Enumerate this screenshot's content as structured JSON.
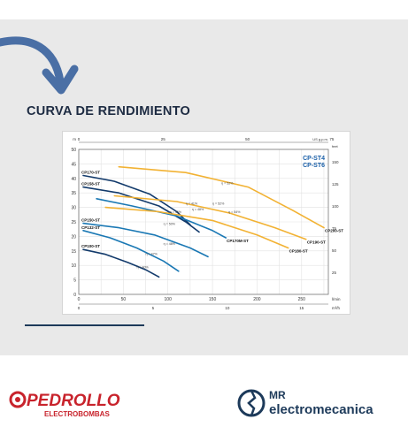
{
  "page": {
    "heading": "CURVA DE RENDIMIENTO",
    "brand_left": {
      "name": "PEDROLLO",
      "sub": "ELECTROBOMBAS",
      "color": "#c8232c"
    },
    "brand_right": {
      "line1": "MR",
      "line2": "electromecanica",
      "color": "#1d3a5a"
    },
    "accent_arrow_color": "#4a6fa5"
  },
  "chart_data": {
    "type": "line",
    "title": "CP-ST4\nCP-ST6",
    "title_lines": [
      "CP-ST4",
      "CP-ST6"
    ],
    "xlabel": "l/min",
    "xlabel_top": "US g.p.m.",
    "xlabel_m3h": "m³/h",
    "ylabel_left": "m",
    "ylabel_right": "feet",
    "xlim": [
      0,
      280
    ],
    "ylim": [
      0,
      50
    ],
    "x_ticks_lmin": [
      "0",
      "50",
      "100",
      "150",
      "200",
      "250"
    ],
    "x_ticks_gpm": [
      "0",
      "25",
      "50",
      "75"
    ],
    "x_ticks_m3h": [
      "0",
      "5",
      "10",
      "15"
    ],
    "y_ticks_m": [
      "0",
      "5",
      "10",
      "15",
      "20",
      "25",
      "30",
      "35",
      "40",
      "45",
      "50"
    ],
    "y_ticks_ft": [
      "25",
      "50",
      "75",
      "100",
      "125",
      "150"
    ],
    "grid": true,
    "series": [
      {
        "name": "CP100-ST",
        "color": "#123a6b",
        "x": [
          5,
          30,
          55,
          75,
          90
        ],
        "y": [
          15.5,
          13.8,
          11,
          8.5,
          6
        ]
      },
      {
        "name": "CP132-ST",
        "color": "#1a78b4",
        "x": [
          5,
          35,
          65,
          95,
          112
        ],
        "y": [
          22,
          19.5,
          16,
          11.5,
          8
        ]
      },
      {
        "name": "CP150-ST",
        "color": "#1a78b4",
        "x": [
          5,
          45,
          85,
          125,
          145
        ],
        "y": [
          24.5,
          23,
          20.5,
          16,
          13
        ]
      },
      {
        "name": "CP158-ST",
        "color": "#123a6b",
        "x": [
          5,
          45,
          90,
          120,
          135
        ],
        "y": [
          37,
          35,
          30.5,
          25,
          21.5
        ]
      },
      {
        "name": "CP170-ST",
        "color": "#123a6b",
        "x": [
          5,
          40,
          80,
          110,
          125
        ],
        "y": [
          41,
          39,
          34.5,
          28.5,
          24
        ]
      },
      {
        "name": "CP170M-ST",
        "color": "#1a78b4",
        "x": [
          20,
          60,
          110,
          150,
          165
        ],
        "y": [
          33,
          30.5,
          27,
          22,
          19.5
        ]
      },
      {
        "name": "CP180-ST",
        "color": "#f2b233",
        "x": [
          30,
          90,
          150,
          200,
          235
        ],
        "y": [
          30,
          28.5,
          25.5,
          20.5,
          16
        ]
      },
      {
        "name": "CP190-ST",
        "color": "#f2b233",
        "x": [
          40,
          110,
          170,
          220,
          255
        ],
        "y": [
          34,
          32,
          28,
          23,
          19
        ]
      },
      {
        "name": "CP200-ST",
        "color": "#f2b233",
        "x": [
          45,
          120,
          190,
          240,
          275
        ],
        "y": [
          44,
          42,
          37,
          29,
          23
        ]
      }
    ],
    "efficiency_labels": [
      {
        "text": "η = 52%",
        "x": 160,
        "y": 38
      },
      {
        "text": "η = 54%",
        "x": 168,
        "y": 28
      },
      {
        "text": "η = 52%",
        "x": 150,
        "y": 31
      },
      {
        "text": "η = 41%",
        "x": 120,
        "y": 31
      },
      {
        "text": "η = 48%",
        "x": 127,
        "y": 29
      },
      {
        "text": "η = 45%",
        "x": 102,
        "y": 28
      },
      {
        "text": "η = 50%",
        "x": 95,
        "y": 24
      },
      {
        "text": "η = 48%",
        "x": 95,
        "y": 17
      },
      {
        "text": "η = 47%",
        "x": 75,
        "y": 13.5
      },
      {
        "text": "η = 40%",
        "x": 65,
        "y": 9
      }
    ]
  }
}
